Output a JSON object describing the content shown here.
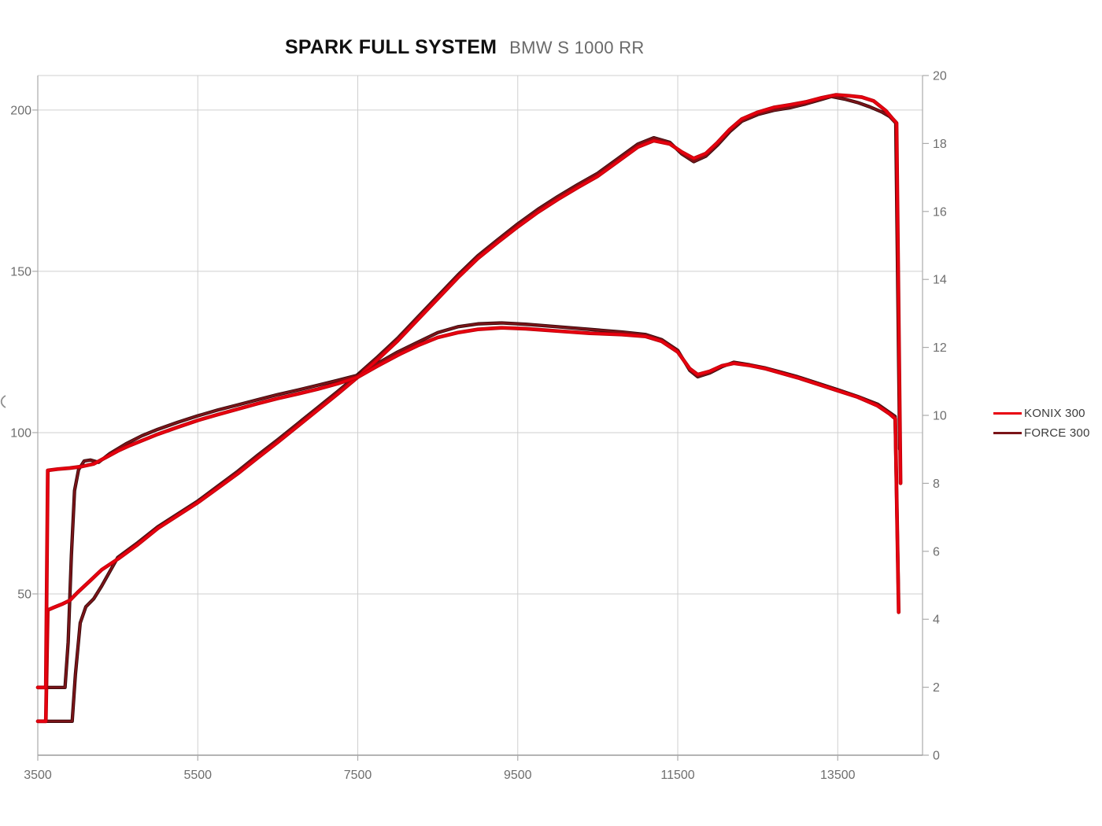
{
  "title": {
    "main": "SPARK FULL SYSTEM",
    "sub": "BMW S 1000 RR"
  },
  "legend": [
    {
      "label": "KONIX 300",
      "color": "#e8000f"
    },
    {
      "label": "FORCE 300",
      "color": "#7a1418"
    }
  ],
  "chart_data": {
    "type": "line",
    "title": "SPARK FULL SYSTEM",
    "subtitle": "BMW S 1000 RR",
    "grid": "on",
    "legend_position": "right",
    "x": {
      "range": [
        3500,
        14560
      ],
      "ticks": [
        3500,
        5500,
        7500,
        9500,
        11500,
        13500
      ]
    },
    "y_left": {
      "range": [
        0,
        210.7
      ],
      "ticks": [
        50,
        100,
        150,
        200
      ]
    },
    "y_right": {
      "range": [
        0,
        20
      ],
      "ticks": [
        0,
        2,
        4,
        6,
        8,
        10,
        12,
        14,
        16,
        18,
        20
      ]
    },
    "values_axis": "left",
    "series": [
      {
        "name": "FORCE 300 power",
        "color": "#7a1418",
        "edge": "#300709",
        "width": 2.7,
        "points": [
          [
            3500,
            10.5
          ],
          [
            3930,
            10.5
          ],
          [
            3970,
            25
          ],
          [
            4030,
            41
          ],
          [
            4100,
            46
          ],
          [
            4200,
            48.5
          ],
          [
            4300,
            52.5
          ],
          [
            4500,
            61.3
          ],
          [
            4750,
            65.9
          ],
          [
            5000,
            70.8
          ],
          [
            5250,
            74.8
          ],
          [
            5500,
            78.8
          ],
          [
            5750,
            83.4
          ],
          [
            6000,
            88
          ],
          [
            6250,
            93
          ],
          [
            6500,
            97.8
          ],
          [
            6750,
            102.8
          ],
          [
            7000,
            107.8
          ],
          [
            7250,
            112.8
          ],
          [
            7500,
            118
          ],
          [
            7750,
            123.5
          ],
          [
            8000,
            129.3
          ],
          [
            8250,
            135.8
          ],
          [
            8500,
            142.3
          ],
          [
            8750,
            148.8
          ],
          [
            9000,
            154.8
          ],
          [
            9250,
            159.8
          ],
          [
            9500,
            164.7
          ],
          [
            9750,
            169.2
          ],
          [
            10000,
            173.2
          ],
          [
            10250,
            176.9
          ],
          [
            10500,
            180.4
          ],
          [
            10750,
            184.9
          ],
          [
            11000,
            189.4
          ],
          [
            11200,
            191.4
          ],
          [
            11400,
            190
          ],
          [
            11550,
            186.4
          ],
          [
            11700,
            184
          ],
          [
            11850,
            185.7
          ],
          [
            12000,
            189.2
          ],
          [
            12150,
            193.3
          ],
          [
            12300,
            196.5
          ],
          [
            12500,
            198.6
          ],
          [
            12700,
            199.9
          ],
          [
            12900,
            200.7
          ],
          [
            13100,
            201.9
          ],
          [
            13300,
            203.3
          ],
          [
            13420,
            204.2
          ],
          [
            13600,
            203.3
          ],
          [
            13750,
            202.3
          ],
          [
            13900,
            201
          ],
          [
            14050,
            199.4
          ],
          [
            14150,
            198
          ],
          [
            14225,
            196
          ],
          [
            14275,
            94.9
          ]
        ]
      },
      {
        "name": "FORCE 300 torque",
        "color": "#7a1418",
        "edge": "#300709",
        "width": 2.7,
        "points": [
          [
            3500,
            21
          ],
          [
            3840,
            21
          ],
          [
            3880,
            35
          ],
          [
            3920,
            62
          ],
          [
            3960,
            82
          ],
          [
            4010,
            88.5
          ],
          [
            4080,
            91.2
          ],
          [
            4160,
            91.5
          ],
          [
            4260,
            90.8
          ],
          [
            4400,
            93.5
          ],
          [
            4600,
            96.5
          ],
          [
            4800,
            99
          ],
          [
            5000,
            101
          ],
          [
            5250,
            103.2
          ],
          [
            5500,
            105.2
          ],
          [
            5750,
            107
          ],
          [
            6000,
            108.6
          ],
          [
            6250,
            110.2
          ],
          [
            6500,
            111.8
          ],
          [
            6750,
            113.2
          ],
          [
            7000,
            114.7
          ],
          [
            7250,
            116.2
          ],
          [
            7500,
            117.8
          ],
          [
            7750,
            121.5
          ],
          [
            8000,
            125
          ],
          [
            8250,
            128
          ],
          [
            8500,
            131
          ],
          [
            8750,
            132.8
          ],
          [
            9000,
            133.7
          ],
          [
            9300,
            134
          ],
          [
            9600,
            133.6
          ],
          [
            10000,
            132.8
          ],
          [
            10400,
            132
          ],
          [
            10800,
            131.2
          ],
          [
            11100,
            130.4
          ],
          [
            11300,
            128.8
          ],
          [
            11500,
            125.5
          ],
          [
            11650,
            119.3
          ],
          [
            11750,
            117.3
          ],
          [
            11900,
            118.5
          ],
          [
            12050,
            120.4
          ],
          [
            12200,
            121.8
          ],
          [
            12400,
            121
          ],
          [
            12600,
            120
          ],
          [
            12800,
            118.7
          ],
          [
            13000,
            117.3
          ],
          [
            13250,
            115.3
          ],
          [
            13500,
            113.3
          ],
          [
            13750,
            111.2
          ],
          [
            14000,
            108.8
          ],
          [
            14150,
            106.2
          ],
          [
            14218,
            105
          ],
          [
            14258,
            51
          ]
        ]
      },
      {
        "name": "KONIX 300 power",
        "color": "#e8000f",
        "edge": "#b50008",
        "width": 3.1,
        "points": [
          [
            3500,
            10.5
          ],
          [
            3600,
            10.5
          ],
          [
            3625,
            45
          ],
          [
            3700,
            45.8
          ],
          [
            3800,
            46.8
          ],
          [
            3900,
            48
          ],
          [
            4000,
            50.5
          ],
          [
            4150,
            54
          ],
          [
            4300,
            57.5
          ],
          [
            4500,
            60.8
          ],
          [
            4750,
            65.3
          ],
          [
            5000,
            70.3
          ],
          [
            5250,
            74.3
          ],
          [
            5500,
            78.3
          ],
          [
            5750,
            82.8
          ],
          [
            6000,
            87.3
          ],
          [
            6250,
            92.2
          ],
          [
            6500,
            97
          ],
          [
            6750,
            102
          ],
          [
            7000,
            107
          ],
          [
            7250,
            112
          ],
          [
            7500,
            117.2
          ],
          [
            7750,
            122.7
          ],
          [
            8000,
            128.5
          ],
          [
            8250,
            135
          ],
          [
            8500,
            141.5
          ],
          [
            8750,
            148
          ],
          [
            9000,
            154
          ],
          [
            9250,
            159
          ],
          [
            9500,
            163.8
          ],
          [
            9750,
            168.3
          ],
          [
            10000,
            172.3
          ],
          [
            10250,
            176
          ],
          [
            10500,
            179.5
          ],
          [
            10750,
            184
          ],
          [
            11000,
            188.5
          ],
          [
            11200,
            190.5
          ],
          [
            11400,
            189.5
          ],
          [
            11550,
            187
          ],
          [
            11700,
            185
          ],
          [
            11850,
            186.5
          ],
          [
            12000,
            190
          ],
          [
            12150,
            194
          ],
          [
            12300,
            197.2
          ],
          [
            12500,
            199.3
          ],
          [
            12700,
            200.8
          ],
          [
            12900,
            201.6
          ],
          [
            13100,
            202.5
          ],
          [
            13300,
            203.8
          ],
          [
            13480,
            204.7
          ],
          [
            13650,
            204.4
          ],
          [
            13800,
            204
          ],
          [
            13950,
            202.8
          ],
          [
            14100,
            199.8
          ],
          [
            14190,
            197.2
          ],
          [
            14235,
            196
          ],
          [
            14285,
            84.3
          ]
        ]
      },
      {
        "name": "KONIX 300 torque",
        "color": "#e8000f",
        "edge": "#b50008",
        "width": 3.1,
        "points": [
          [
            3500,
            21
          ],
          [
            3600,
            21
          ],
          [
            3625,
            88.3
          ],
          [
            3750,
            88.7
          ],
          [
            3900,
            89
          ],
          [
            4050,
            89.5
          ],
          [
            4200,
            90.3
          ],
          [
            4350,
            92.3
          ],
          [
            4500,
            94.3
          ],
          [
            4650,
            96
          ],
          [
            4800,
            97.5
          ],
          [
            5000,
            99.5
          ],
          [
            5250,
            101.7
          ],
          [
            5500,
            103.8
          ],
          [
            5750,
            105.6
          ],
          [
            6000,
            107.3
          ],
          [
            6250,
            109
          ],
          [
            6500,
            110.6
          ],
          [
            6750,
            112
          ],
          [
            7000,
            113.5
          ],
          [
            7250,
            115.2
          ],
          [
            7500,
            117.2
          ],
          [
            7750,
            120.7
          ],
          [
            8000,
            124
          ],
          [
            8250,
            127
          ],
          [
            8500,
            129.5
          ],
          [
            8750,
            131
          ],
          [
            9000,
            132
          ],
          [
            9300,
            132.5
          ],
          [
            9600,
            132.2
          ],
          [
            10000,
            131.5
          ],
          [
            10400,
            130.8
          ],
          [
            10800,
            130.4
          ],
          [
            11100,
            129.8
          ],
          [
            11300,
            128.3
          ],
          [
            11500,
            125
          ],
          [
            11650,
            119.8
          ],
          [
            11750,
            118
          ],
          [
            11900,
            119
          ],
          [
            12050,
            120.7
          ],
          [
            12200,
            121.5
          ],
          [
            12400,
            120.8
          ],
          [
            12600,
            119.8
          ],
          [
            12800,
            118.4
          ],
          [
            13000,
            117
          ],
          [
            13250,
            115
          ],
          [
            13500,
            113
          ],
          [
            13750,
            111
          ],
          [
            14000,
            108.3
          ],
          [
            14150,
            105.8
          ],
          [
            14220,
            104.3
          ],
          [
            14262,
            44.3
          ]
        ]
      }
    ],
    "colors": {
      "gridline": "#cfcfcf",
      "axis_line": "#ababab",
      "bottom_axis": "#9b9b9b",
      "tick_label": "#6e6e6e"
    }
  }
}
